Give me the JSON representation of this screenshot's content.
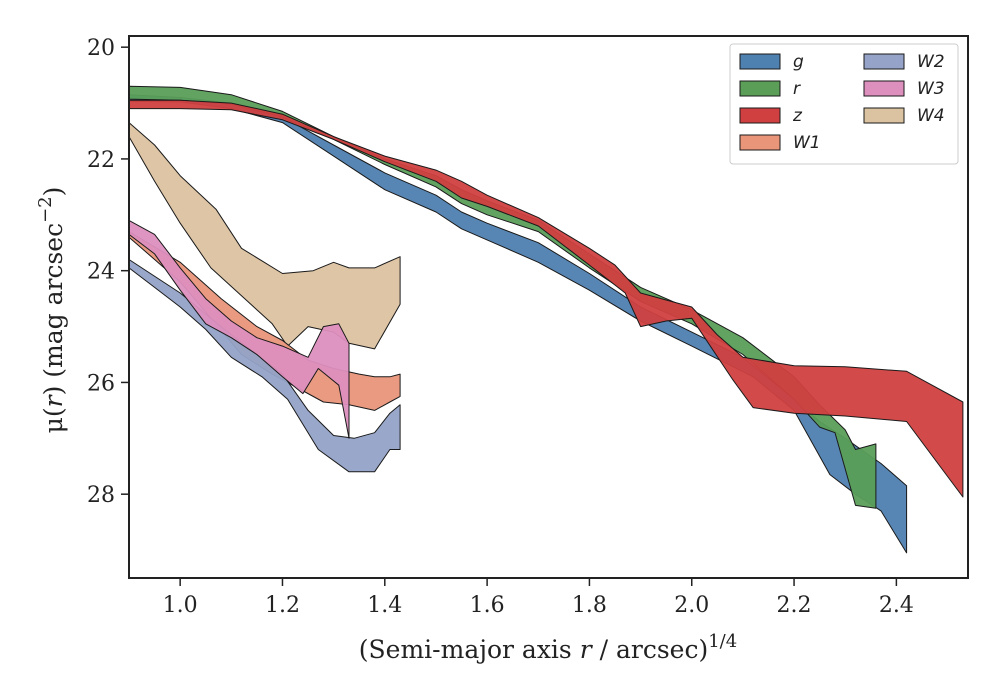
{
  "chart_data": {
    "type": "area",
    "xlabel_main": "(Semi-major axis ",
    "xlabel_var": "r",
    "xlabel_tail": " / arcsec)",
    "xlabel_exp": "1/4",
    "ylabel_prefix": "μ(",
    "ylabel_var": "r",
    "ylabel_suffix": ") (mag arcsec",
    "ylabel_exp": "−2",
    "ylabel_close": ")",
    "xlim": [
      0.9,
      2.54
    ],
    "ylim": [
      29.5,
      19.8
    ],
    "y_inverted": true,
    "xticks": [
      "1.0",
      "1.2",
      "1.4",
      "1.6",
      "1.8",
      "2.0",
      "2.2",
      "2.4"
    ],
    "xtick_values": [
      1.0,
      1.2,
      1.4,
      1.6,
      1.8,
      2.0,
      2.2,
      2.4
    ],
    "yticks": [
      "20",
      "22",
      "24",
      "26",
      "28"
    ],
    "ytick_values": [
      20,
      22,
      24,
      26,
      28
    ],
    "legend_position": "top-right",
    "legend_columns": 2,
    "series": [
      {
        "name": "W4",
        "color": "#dbc2a0",
        "upper": [
          [
            0.9,
            21.35
          ],
          [
            0.95,
            21.75
          ],
          [
            1.0,
            22.3
          ],
          [
            1.07,
            22.9
          ],
          [
            1.12,
            23.6
          ],
          [
            1.2,
            24.05
          ],
          [
            1.26,
            24.0
          ],
          [
            1.3,
            23.85
          ],
          [
            1.33,
            23.95
          ],
          [
            1.38,
            23.95
          ],
          [
            1.43,
            23.75
          ]
        ],
        "lower": [
          [
            1.43,
            24.6
          ],
          [
            1.38,
            25.4
          ],
          [
            1.33,
            25.3
          ],
          [
            1.3,
            25.1
          ],
          [
            1.25,
            25.0
          ],
          [
            1.21,
            25.35
          ],
          [
            1.18,
            24.95
          ],
          [
            1.12,
            24.45
          ],
          [
            1.06,
            23.95
          ],
          [
            1.0,
            23.15
          ],
          [
            0.95,
            22.4
          ],
          [
            0.9,
            21.6
          ]
        ]
      },
      {
        "name": "W1",
        "color": "#e9957a",
        "upper": [
          [
            0.9,
            23.3
          ],
          [
            1.0,
            23.85
          ],
          [
            1.08,
            24.5
          ],
          [
            1.15,
            25.0
          ],
          [
            1.2,
            25.25
          ],
          [
            1.25,
            25.6
          ],
          [
            1.3,
            25.75
          ],
          [
            1.35,
            25.85
          ],
          [
            1.38,
            25.9
          ],
          [
            1.41,
            25.9
          ],
          [
            1.43,
            25.85
          ]
        ],
        "lower": [
          [
            1.43,
            26.25
          ],
          [
            1.41,
            26.35
          ],
          [
            1.38,
            26.5
          ],
          [
            1.33,
            26.4
          ],
          [
            1.28,
            26.35
          ],
          [
            1.23,
            26.1
          ],
          [
            1.18,
            25.85
          ],
          [
            1.12,
            25.5
          ],
          [
            1.06,
            24.85
          ],
          [
            1.0,
            24.2
          ],
          [
            0.95,
            23.8
          ],
          [
            0.9,
            23.4
          ]
        ]
      },
      {
        "name": "W2",
        "color": "#94a3c7",
        "upper": [
          [
            0.9,
            23.8
          ],
          [
            1.0,
            24.4
          ],
          [
            1.08,
            25.0
          ],
          [
            1.15,
            25.5
          ],
          [
            1.2,
            25.85
          ],
          [
            1.25,
            26.5
          ],
          [
            1.3,
            26.95
          ],
          [
            1.34,
            27.0
          ],
          [
            1.38,
            26.9
          ],
          [
            1.41,
            26.55
          ],
          [
            1.43,
            26.4
          ]
        ],
        "lower": [
          [
            1.43,
            27.2
          ],
          [
            1.41,
            27.2
          ],
          [
            1.38,
            27.6
          ],
          [
            1.33,
            27.6
          ],
          [
            1.27,
            27.2
          ],
          [
            1.21,
            26.3
          ],
          [
            1.16,
            25.9
          ],
          [
            1.1,
            25.55
          ],
          [
            1.05,
            25.05
          ],
          [
            1.0,
            24.65
          ],
          [
            0.95,
            24.3
          ],
          [
            0.9,
            23.95
          ]
        ]
      },
      {
        "name": "W3",
        "color": "#dd8fbe",
        "upper": [
          [
            0.9,
            23.1
          ],
          [
            0.95,
            23.35
          ],
          [
            1.0,
            23.95
          ],
          [
            1.05,
            24.5
          ],
          [
            1.1,
            24.9
          ],
          [
            1.15,
            25.2
          ],
          [
            1.2,
            25.35
          ],
          [
            1.25,
            25.55
          ],
          [
            1.28,
            25.0
          ],
          [
            1.31,
            24.95
          ],
          [
            1.33,
            25.3
          ],
          [
            1.33,
            27.0
          ]
        ],
        "lower": [
          [
            1.33,
            27.0
          ],
          [
            1.31,
            26.05
          ],
          [
            1.27,
            25.75
          ],
          [
            1.24,
            26.2
          ],
          [
            1.2,
            25.9
          ],
          [
            1.15,
            25.5
          ],
          [
            1.1,
            25.2
          ],
          [
            1.05,
            24.95
          ],
          [
            1.0,
            24.35
          ],
          [
            0.95,
            23.7
          ],
          [
            0.9,
            23.35
          ]
        ]
      },
      {
        "name": "g",
        "color": "#4e80b0",
        "upper": [
          [
            0.9,
            20.85
          ],
          [
            1.0,
            20.9
          ],
          [
            1.1,
            21.0
          ],
          [
            1.2,
            21.25
          ],
          [
            1.3,
            21.75
          ],
          [
            1.4,
            22.25
          ],
          [
            1.5,
            22.65
          ],
          [
            1.55,
            22.95
          ],
          [
            1.6,
            23.15
          ],
          [
            1.7,
            23.5
          ],
          [
            1.8,
            24.05
          ],
          [
            1.9,
            24.65
          ],
          [
            2.0,
            25.1
          ],
          [
            2.1,
            25.55
          ],
          [
            2.2,
            26.3
          ],
          [
            2.25,
            26.7
          ],
          [
            2.3,
            27.0
          ],
          [
            2.37,
            27.45
          ],
          [
            2.42,
            27.85
          ]
        ],
        "lower": [
          [
            2.42,
            29.05
          ],
          [
            2.37,
            28.3
          ],
          [
            2.32,
            28.0
          ],
          [
            2.27,
            27.65
          ],
          [
            2.2,
            26.5
          ],
          [
            2.12,
            25.9
          ],
          [
            2.0,
            25.35
          ],
          [
            1.9,
            24.9
          ],
          [
            1.8,
            24.35
          ],
          [
            1.7,
            23.85
          ],
          [
            1.6,
            23.45
          ],
          [
            1.55,
            23.25
          ],
          [
            1.5,
            22.95
          ],
          [
            1.4,
            22.55
          ],
          [
            1.3,
            21.95
          ],
          [
            1.2,
            21.35
          ],
          [
            1.1,
            21.1
          ],
          [
            1.0,
            20.98
          ],
          [
            0.9,
            20.97
          ]
        ]
      },
      {
        "name": "r",
        "color": "#5a9e58",
        "upper": [
          [
            0.9,
            20.7
          ],
          [
            1.0,
            20.72
          ],
          [
            1.1,
            20.85
          ],
          [
            1.2,
            21.15
          ],
          [
            1.3,
            21.6
          ],
          [
            1.4,
            22.0
          ],
          [
            1.5,
            22.3
          ],
          [
            1.55,
            22.55
          ],
          [
            1.6,
            22.75
          ],
          [
            1.7,
            23.1
          ],
          [
            1.8,
            23.7
          ],
          [
            1.9,
            24.3
          ],
          [
            2.0,
            24.7
          ],
          [
            2.1,
            25.2
          ],
          [
            2.2,
            25.9
          ],
          [
            2.25,
            26.4
          ],
          [
            2.3,
            26.85
          ],
          [
            2.32,
            27.2
          ],
          [
            2.36,
            27.1
          ]
        ],
        "lower": [
          [
            2.36,
            28.25
          ],
          [
            2.32,
            28.2
          ],
          [
            2.28,
            26.9
          ],
          [
            2.25,
            26.8
          ],
          [
            2.2,
            26.3
          ],
          [
            2.1,
            25.5
          ],
          [
            2.0,
            24.95
          ],
          [
            1.9,
            24.55
          ],
          [
            1.8,
            23.95
          ],
          [
            1.7,
            23.3
          ],
          [
            1.6,
            23.0
          ],
          [
            1.55,
            22.8
          ],
          [
            1.5,
            22.5
          ],
          [
            1.4,
            22.1
          ],
          [
            1.3,
            21.65
          ],
          [
            1.2,
            21.25
          ],
          [
            1.1,
            21.02
          ],
          [
            1.0,
            20.95
          ],
          [
            0.9,
            20.93
          ]
        ]
      },
      {
        "name": "z",
        "color": "#d04040",
        "upper": [
          [
            0.9,
            20.95
          ],
          [
            1.0,
            20.95
          ],
          [
            1.1,
            21.0
          ],
          [
            1.2,
            21.2
          ],
          [
            1.3,
            21.6
          ],
          [
            1.4,
            21.95
          ],
          [
            1.5,
            22.2
          ],
          [
            1.55,
            22.4
          ],
          [
            1.6,
            22.65
          ],
          [
            1.7,
            23.05
          ],
          [
            1.8,
            23.6
          ],
          [
            1.85,
            23.9
          ],
          [
            1.9,
            24.4
          ],
          [
            2.0,
            24.65
          ],
          [
            2.05,
            25.15
          ],
          [
            2.1,
            25.55
          ],
          [
            2.2,
            25.7
          ],
          [
            2.3,
            25.72
          ],
          [
            2.42,
            25.8
          ],
          [
            2.53,
            26.35
          ]
        ],
        "lower": [
          [
            2.53,
            28.05
          ],
          [
            2.42,
            26.7
          ],
          [
            2.3,
            26.6
          ],
          [
            2.2,
            26.55
          ],
          [
            2.12,
            26.45
          ],
          [
            2.08,
            25.95
          ],
          [
            2.0,
            24.85
          ],
          [
            1.95,
            24.9
          ],
          [
            1.9,
            25.0
          ],
          [
            1.87,
            24.4
          ],
          [
            1.8,
            23.9
          ],
          [
            1.7,
            23.2
          ],
          [
            1.6,
            22.85
          ],
          [
            1.55,
            22.7
          ],
          [
            1.5,
            22.4
          ],
          [
            1.4,
            22.05
          ],
          [
            1.3,
            21.65
          ],
          [
            1.2,
            21.3
          ],
          [
            1.1,
            21.12
          ],
          [
            1.0,
            21.1
          ],
          [
            0.9,
            21.1
          ]
        ]
      }
    ],
    "legend": [
      {
        "name": "g",
        "color": "#4e80b0"
      },
      {
        "name": "r",
        "color": "#5a9e58"
      },
      {
        "name": "z",
        "color": "#d04040"
      },
      {
        "name": "W1",
        "color": "#e9957a"
      },
      {
        "name": "W2",
        "color": "#94a3c7"
      },
      {
        "name": "W3",
        "color": "#dd8fbe"
      },
      {
        "name": "W4",
        "color": "#dbc2a0"
      }
    ]
  }
}
